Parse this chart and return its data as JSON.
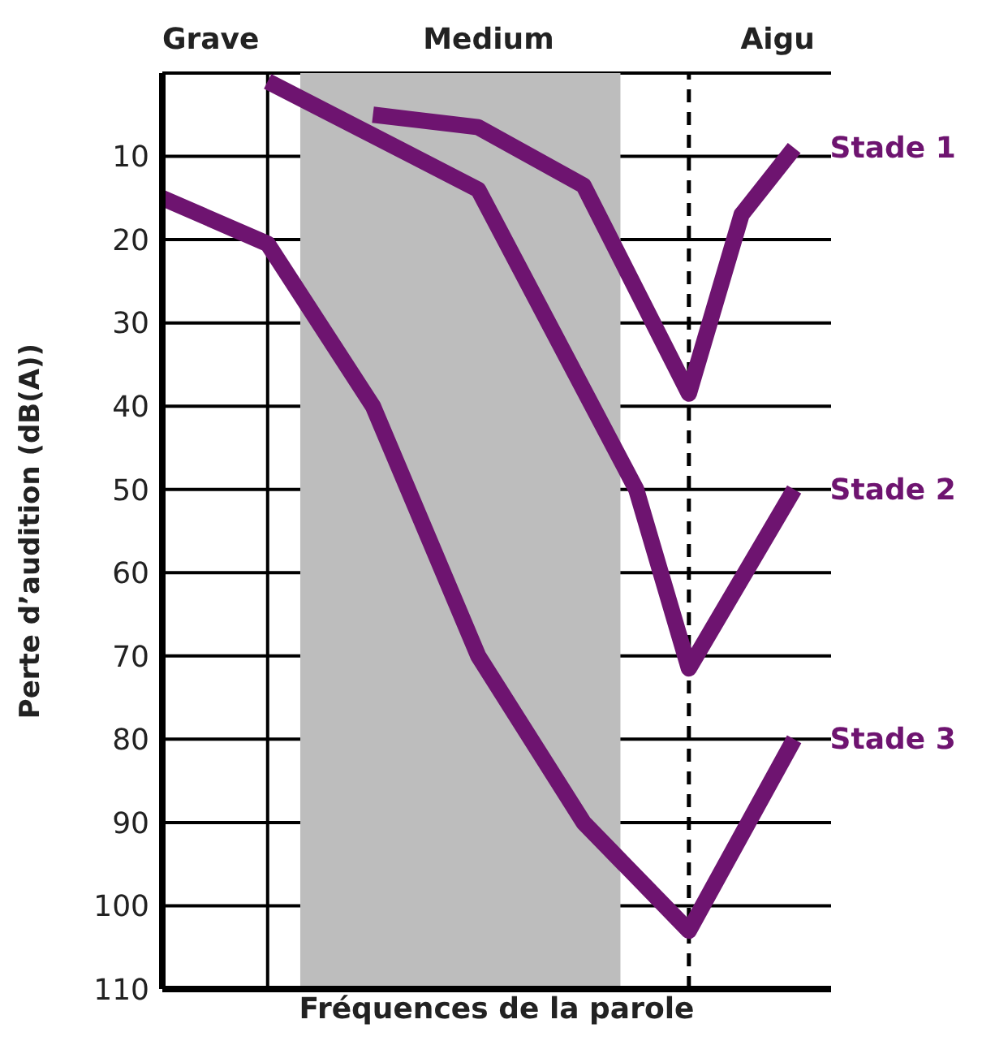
{
  "chart_data": {
    "type": "line",
    "xlabel": "Fréquences de la parole",
    "ylabel": "Perte d’audition (dB(A))",
    "annotations": [
      "Grave",
      "Medium",
      "Aigu"
    ],
    "categories": [
      null,
      null,
      null,
      null,
      null,
      null,
      null,
      null,
      null,
      null,
      null,
      null,
      null
    ],
    "series": [
      {
        "name": "Stade 1",
        "color": "#6e1470",
        "values": [
          null,
          null,
          null,
          null,
          5,
          null,
          6.5,
          null,
          13.5,
          null,
          38.5,
          17,
          9
        ]
      },
      {
        "name": "Stade 2",
        "color": "#6e1470",
        "values": [
          null,
          null,
          1,
          null,
          null,
          null,
          14,
          null,
          null,
          50,
          71.5,
          null,
          50
        ]
      },
      {
        "name": "Stade 3",
        "color": "#6e1470",
        "values": [
          15,
          null,
          20.5,
          null,
          40,
          null,
          70,
          null,
          90,
          null,
          103,
          null,
          80
        ]
      }
    ],
    "ylim": [
      110,
      0
    ],
    "yticks": [
      10,
      20,
      30,
      40,
      50,
      60,
      70,
      80,
      90,
      100,
      110
    ],
    "tick_labels": "y",
    "grid": true,
    "marker": "none",
    "line_style": "solid"
  }
}
